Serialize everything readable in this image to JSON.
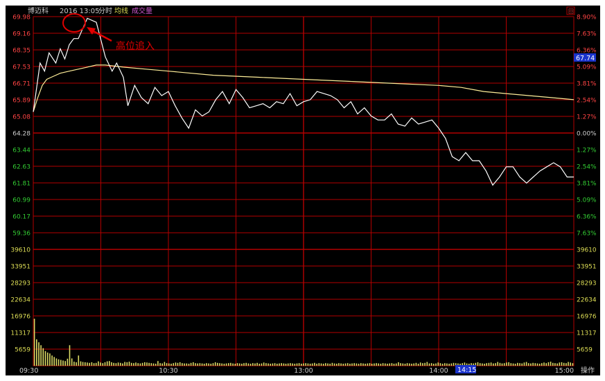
{
  "header": {
    "stock_name": "博迈科",
    "datetime": "2016 13:05",
    "tags": [
      "分时",
      "均线",
      "成交量"
    ],
    "corner_badge": "回"
  },
  "annotation": {
    "text": "高位追入"
  },
  "current_price_label": "67.74",
  "hover_time_label": "14:15",
  "footer_button": "操作",
  "colors": {
    "background": "#000000",
    "grid": "#b40000",
    "price_line": "#ffffff",
    "avg_line": "#ffee99",
    "up": "#ff4444",
    "down": "#33cc33",
    "neutral": "#cccccc",
    "annotation": "#e00000",
    "price_tag_bg": "#1a33cc"
  },
  "chart_data": {
    "type": "line",
    "x_ticks": [
      "09:30",
      "10:30",
      "13:00",
      "14:00",
      "15:00"
    ],
    "price_axis": {
      "left_labels": [
        "69.98",
        "69.16",
        "68.35",
        "67.53",
        "66.71",
        "65.89",
        "65.08",
        "64.28",
        "63.44",
        "62.63",
        "61.81",
        "60.99",
        "60.17",
        "59.36"
      ],
      "right_labels": [
        "8.90%",
        "7.63%",
        "6.36%",
        "5.09%",
        "3.81%",
        "2.54%",
        "1.27%",
        "0.00%",
        "1.27%",
        "2.54%",
        "3.81%",
        "5.09%",
        "6.36%",
        "7.63%"
      ],
      "reference_price": 64.28,
      "ylim": [
        59.36,
        69.98
      ]
    },
    "volume_axis": {
      "labels": [
        "39610",
        "33951",
        "28293",
        "22634",
        "16976",
        "11317",
        "5659"
      ],
      "ylim": [
        0,
        39610
      ]
    },
    "price_series": {
      "name": "",
      "minutes": [
        0,
        1,
        3,
        5,
        7,
        10,
        12,
        14,
        16,
        18,
        20,
        24,
        28,
        32,
        35,
        37,
        40,
        42,
        45,
        48,
        51,
        54,
        57,
        60,
        63,
        66,
        69,
        72,
        75,
        78,
        81,
        84,
        87,
        90,
        93,
        96,
        99,
        102,
        105,
        108,
        111,
        114,
        117,
        120,
        123,
        126,
        129,
        132,
        135,
        138,
        141,
        144,
        147,
        150,
        153,
        156,
        159,
        162,
        165,
        168,
        171,
        174,
        177,
        180,
        183,
        186,
        189,
        192,
        195,
        198,
        201,
        204,
        207,
        210,
        213,
        216,
        219,
        222,
        225,
        228,
        231,
        234,
        237,
        240
      ],
      "values": [
        65.3,
        66.1,
        67.7,
        67.3,
        68.2,
        67.7,
        68.4,
        67.9,
        68.6,
        68.9,
        68.9,
        69.9,
        69.7,
        68.0,
        67.3,
        67.7,
        67.0,
        65.6,
        66.6,
        66.0,
        65.7,
        66.5,
        66.1,
        66.3,
        65.6,
        65.0,
        64.5,
        65.4,
        65.1,
        65.3,
        65.9,
        66.3,
        65.7,
        66.4,
        66.0,
        65.5,
        65.6,
        65.7,
        65.5,
        65.8,
        65.7,
        66.2,
        65.6,
        65.8,
        65.9,
        66.3,
        66.2,
        66.1,
        65.9,
        65.5,
        65.8,
        65.2,
        65.5,
        65.1,
        64.9,
        64.9,
        65.2,
        64.7,
        64.6,
        65.0,
        64.7,
        64.8,
        64.9,
        64.5,
        64.0,
        63.1,
        62.9,
        63.3,
        62.9,
        62.9,
        62.4,
        61.7,
        62.1,
        62.6,
        62.6,
        62.1,
        61.8,
        62.1,
        62.4,
        62.6,
        62.8,
        62.6,
        62.1,
        62.1
      ]
    },
    "avg_series": {
      "name": "",
      "minutes": [
        0,
        2,
        4,
        6,
        8,
        12,
        16,
        20,
        24,
        28,
        32,
        40,
        50,
        60,
        80,
        100,
        120,
        140,
        160,
        180,
        190,
        200,
        210,
        220,
        230,
        240
      ],
      "values": [
        65.3,
        66.0,
        66.6,
        66.9,
        67.0,
        67.2,
        67.3,
        67.4,
        67.5,
        67.6,
        67.6,
        67.5,
        67.4,
        67.3,
        67.1,
        67.0,
        66.9,
        66.8,
        66.7,
        66.6,
        66.5,
        66.3,
        66.2,
        66.1,
        66.0,
        65.9
      ]
    },
    "volume_series": {
      "values": [
        16000,
        9000,
        8000,
        7000,
        6000,
        5000,
        4500,
        4200,
        3500,
        3000,
        2500,
        2200,
        2000,
        1800,
        1600,
        2400,
        7000,
        2500,
        1400,
        1200,
        3500,
        1500,
        1300,
        1200,
        1100,
        1000,
        1200,
        900,
        1000,
        1500,
        1100,
        900,
        1200,
        1500,
        1600,
        1200,
        1000,
        900,
        1100,
        1000,
        800,
        1300,
        1200,
        1400,
        1000,
        900,
        1100,
        900,
        800,
        1000,
        1200,
        1100,
        1000,
        900,
        800,
        700,
        1600,
        900,
        800,
        1300,
        900,
        800,
        700,
        900,
        1100,
        1000,
        1200,
        900,
        800,
        800,
        700,
        1000,
        1200,
        900,
        800,
        900,
        800,
        700,
        900,
        800,
        700,
        900,
        1200,
        1000,
        900,
        800,
        700,
        800,
        900,
        1000,
        800,
        700,
        900,
        800,
        700,
        900,
        1000,
        800,
        700,
        900,
        800,
        1000,
        700,
        800,
        1100,
        900,
        800,
        700,
        800,
        900,
        700,
        800,
        900,
        800,
        700,
        800,
        900,
        800,
        700,
        800,
        900,
        700,
        800,
        900,
        800,
        700,
        800,
        1000,
        700,
        900,
        800,
        700,
        900,
        800,
        700,
        1000,
        800,
        700,
        900,
        800,
        700,
        800,
        900,
        700,
        800,
        900,
        800,
        700,
        900,
        800,
        700,
        800,
        900,
        700,
        800,
        900,
        800,
        700,
        900,
        800,
        700,
        800,
        900,
        700,
        800,
        1200,
        900,
        800,
        700,
        900,
        800,
        700,
        800,
        1000,
        700,
        1100,
        900,
        1000,
        1300,
        800,
        900,
        700,
        800,
        1100,
        900,
        700,
        900,
        800,
        700,
        800,
        1000,
        900,
        800,
        700,
        900,
        1100,
        800,
        700,
        900,
        800,
        1000,
        1200,
        900,
        800,
        700,
        900,
        1000,
        1100,
        800,
        900,
        1300,
        1000,
        800,
        900,
        1100,
        1200,
        900,
        800,
        700,
        1000,
        900,
        800,
        1100,
        1300,
        900,
        800,
        1000,
        900,
        800,
        700,
        900,
        1100,
        900,
        1200,
        1400,
        1000,
        900,
        800,
        1100,
        1200,
        1000,
        900,
        1300,
        1100,
        900
      ]
    }
  }
}
